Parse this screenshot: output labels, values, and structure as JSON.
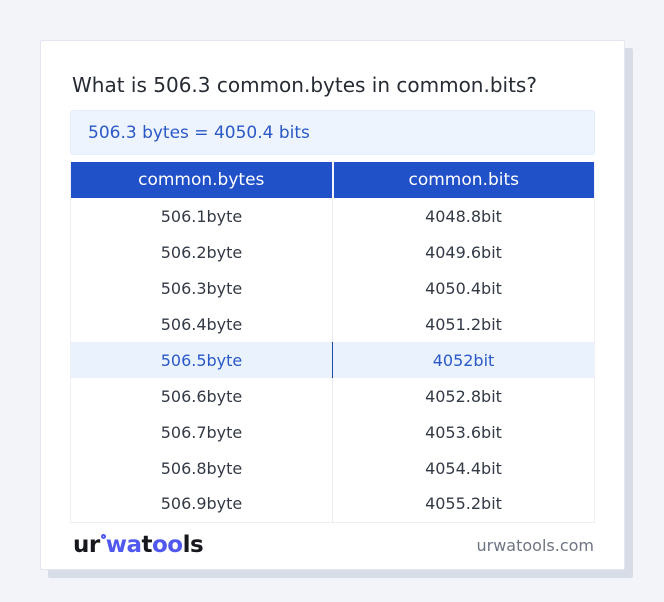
{
  "card": {
    "title": "What is 506.3 common.bytes in common.bits?",
    "result": "506.3 bytes = 4050.4 bits"
  },
  "table": {
    "headers": [
      "common.bytes",
      "common.bits"
    ],
    "rows": [
      {
        "bytes": "506.1byte",
        "bits": "4048.8bit",
        "highlight": false
      },
      {
        "bytes": "506.2byte",
        "bits": "4049.6bit",
        "highlight": false
      },
      {
        "bytes": "506.3byte",
        "bits": "4050.4bit",
        "highlight": false
      },
      {
        "bytes": "506.4byte",
        "bits": "4051.2bit",
        "highlight": false
      },
      {
        "bytes": "506.5byte",
        "bits": "4052bit",
        "highlight": true
      },
      {
        "bytes": "506.6byte",
        "bits": "4052.8bit",
        "highlight": false
      },
      {
        "bytes": "506.7byte",
        "bits": "4053.6bit",
        "highlight": false
      },
      {
        "bytes": "506.8byte",
        "bits": "4054.4bit",
        "highlight": false
      },
      {
        "bytes": "506.9byte",
        "bits": "4055.2bit",
        "highlight": false
      }
    ]
  },
  "footer": {
    "logo": {
      "part1": "ur",
      "part2": "wa",
      "part3": "t",
      "part4": "oo",
      "part5": "ls"
    },
    "site": "urwatools.com"
  },
  "colors": {
    "page_bg": "#f2f4f9",
    "header_blue": "#2151c8",
    "accent_blue": "#2a58c6",
    "result_bg": "#edf4fd",
    "highlight_bg": "#e9f2fd",
    "highlight_divider": "#1c4cad",
    "logo_blue": "#5158ee",
    "shadow": "#d8dce7"
  }
}
